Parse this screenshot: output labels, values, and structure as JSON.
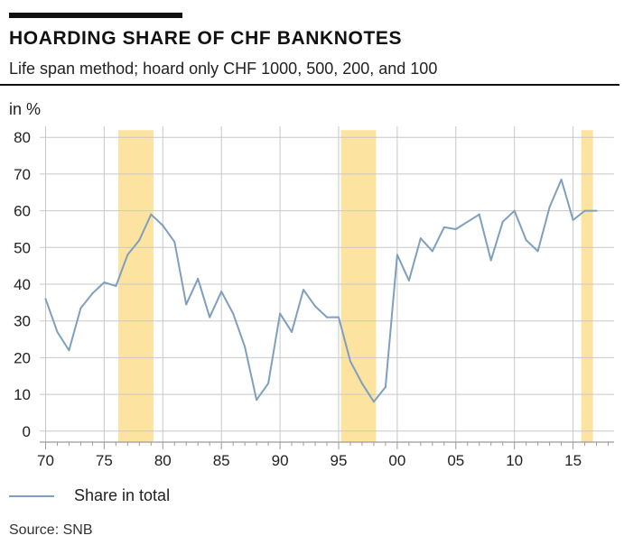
{
  "header": {
    "title": "HOARDING SHARE OF CHF BANKNOTES",
    "subtitle": "Life span method; hoard only CHF 1000, 500, 200, and 100",
    "unit_label": "in %"
  },
  "legend": {
    "series_label": "Share in total"
  },
  "source": "Source: SNB",
  "colors": {
    "line": "#7f9fbf",
    "shade": "#fde3a0",
    "grid": "#c8c8c8",
    "axis": "#9a9a9a",
    "text": "#222222"
  },
  "chart_data": {
    "type": "line",
    "title": "HOARDING SHARE OF CHF BANKNOTES",
    "subtitle": "Life span method; hoard only CHF 1000, 500, 200, and 100",
    "ylabel": "in %",
    "xlim": [
      1969.5,
      2018.5
    ],
    "ylim": [
      -3,
      83
    ],
    "yticks": [
      0,
      10,
      20,
      30,
      40,
      50,
      60,
      70,
      80
    ],
    "xticks": [
      {
        "value": 1970,
        "label": "70"
      },
      {
        "value": 1975,
        "label": "75"
      },
      {
        "value": 1980,
        "label": "80"
      },
      {
        "value": 1985,
        "label": "85"
      },
      {
        "value": 1990,
        "label": "90"
      },
      {
        "value": 1995,
        "label": "95"
      },
      {
        "value": 2000,
        "label": "00"
      },
      {
        "value": 2005,
        "label": "05"
      },
      {
        "value": 2010,
        "label": "10"
      },
      {
        "value": 2015,
        "label": "15"
      }
    ],
    "grid": true,
    "legend_position": "bottom-left",
    "shaded_periods": [
      [
        1976.2,
        1979.2
      ],
      [
        1995.2,
        1998.2
      ],
      [
        2015.7,
        2016.7
      ]
    ],
    "series": [
      {
        "name": "Share in total",
        "x": [
          1970,
          1971,
          1972,
          1973,
          1974,
          1975,
          1976,
          1977,
          1978,
          1979,
          1980,
          1981,
          1982,
          1983,
          1984,
          1985,
          1986,
          1987,
          1988,
          1989,
          1990,
          1991,
          1992,
          1993,
          1994,
          1995,
          1996,
          1997,
          1998,
          1999,
          2000,
          2001,
          2002,
          2003,
          2004,
          2005,
          2006,
          2007,
          2008,
          2009,
          2010,
          2011,
          2012,
          2013,
          2014,
          2015,
          2016,
          2017
        ],
        "values": [
          36,
          27,
          22,
          33.5,
          37.5,
          40.5,
          39.5,
          48,
          52,
          59,
          56,
          51.5,
          34.5,
          41.5,
          31,
          38,
          32,
          23,
          8.5,
          13,
          32,
          27,
          38.5,
          34,
          31,
          31,
          19,
          13,
          8,
          12,
          48,
          41,
          52.5,
          49,
          55.5,
          55,
          57,
          59,
          46.5,
          57,
          60,
          52,
          49,
          61,
          68.5,
          57.5,
          60,
          60
        ]
      }
    ]
  }
}
